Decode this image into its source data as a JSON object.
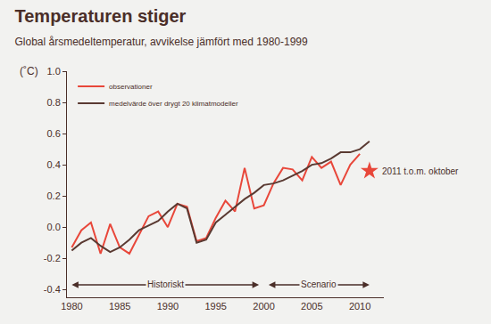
{
  "chart_data": {
    "type": "line",
    "title": "Temperaturen stiger",
    "subtitle": "Global årsmedeltemperatur, avvikelse jämfört med 1980-1999",
    "ylabel": "(˚C)",
    "x": [
      1980,
      1981,
      1982,
      1983,
      1984,
      1985,
      1986,
      1987,
      1988,
      1989,
      1990,
      1991,
      1992,
      1993,
      1994,
      1995,
      1996,
      1997,
      1998,
      1999,
      2000,
      2001,
      2002,
      2003,
      2004,
      2005,
      2006,
      2007,
      2008,
      2009,
      2010,
      2011
    ],
    "series": [
      {
        "name": "observationer",
        "color": "#e8473a",
        "values": [
          -0.13,
          -0.02,
          0.03,
          -0.17,
          0.02,
          -0.13,
          -0.17,
          -0.05,
          0.07,
          0.1,
          0.0,
          0.15,
          0.13,
          -0.09,
          -0.07,
          0.06,
          0.17,
          0.1,
          0.38,
          0.12,
          0.14,
          0.28,
          0.38,
          0.37,
          0.3,
          0.45,
          0.38,
          0.42,
          0.27,
          0.4,
          0.47,
          null
        ]
      },
      {
        "name": "medelvärde över drygt 20 klimatmodeller",
        "color": "#5a3a32",
        "values": [
          -0.15,
          -0.1,
          -0.07,
          -0.12,
          -0.16,
          -0.13,
          -0.08,
          -0.02,
          0.01,
          0.04,
          0.1,
          0.15,
          0.12,
          -0.1,
          -0.08,
          0.03,
          0.08,
          0.13,
          0.18,
          0.22,
          0.27,
          0.28,
          0.3,
          0.33,
          0.36,
          0.4,
          0.41,
          0.44,
          0.48,
          0.48,
          0.5,
          0.55
        ]
      }
    ],
    "xlim": [
      1979.5,
      2012.5
    ],
    "xticks": [
      1980,
      1985,
      1990,
      1995,
      2000,
      2005,
      2010
    ],
    "ylim": [
      -0.45,
      1.0
    ],
    "yticks": [
      -0.4,
      -0.2,
      {
        "value": 0,
        "label": "0.0"
      },
      0.2,
      0.4,
      0.6,
      0.8,
      {
        "value": 1.0,
        "label": "1.0"
      }
    ],
    "grid": false,
    "legend": "upper left",
    "annotations": [
      {
        "text": "2011 t.o.m. oktober",
        "x": 2011,
        "y": 0.36,
        "marker": "star",
        "color": "#e8473a"
      }
    ],
    "periods": [
      {
        "text": "Historiskt",
        "from": 1980,
        "to": 1999.5,
        "y": -0.37
      },
      {
        "text": "Scenario",
        "from": 2000.5,
        "to": 2011,
        "y": -0.37
      }
    ]
  }
}
